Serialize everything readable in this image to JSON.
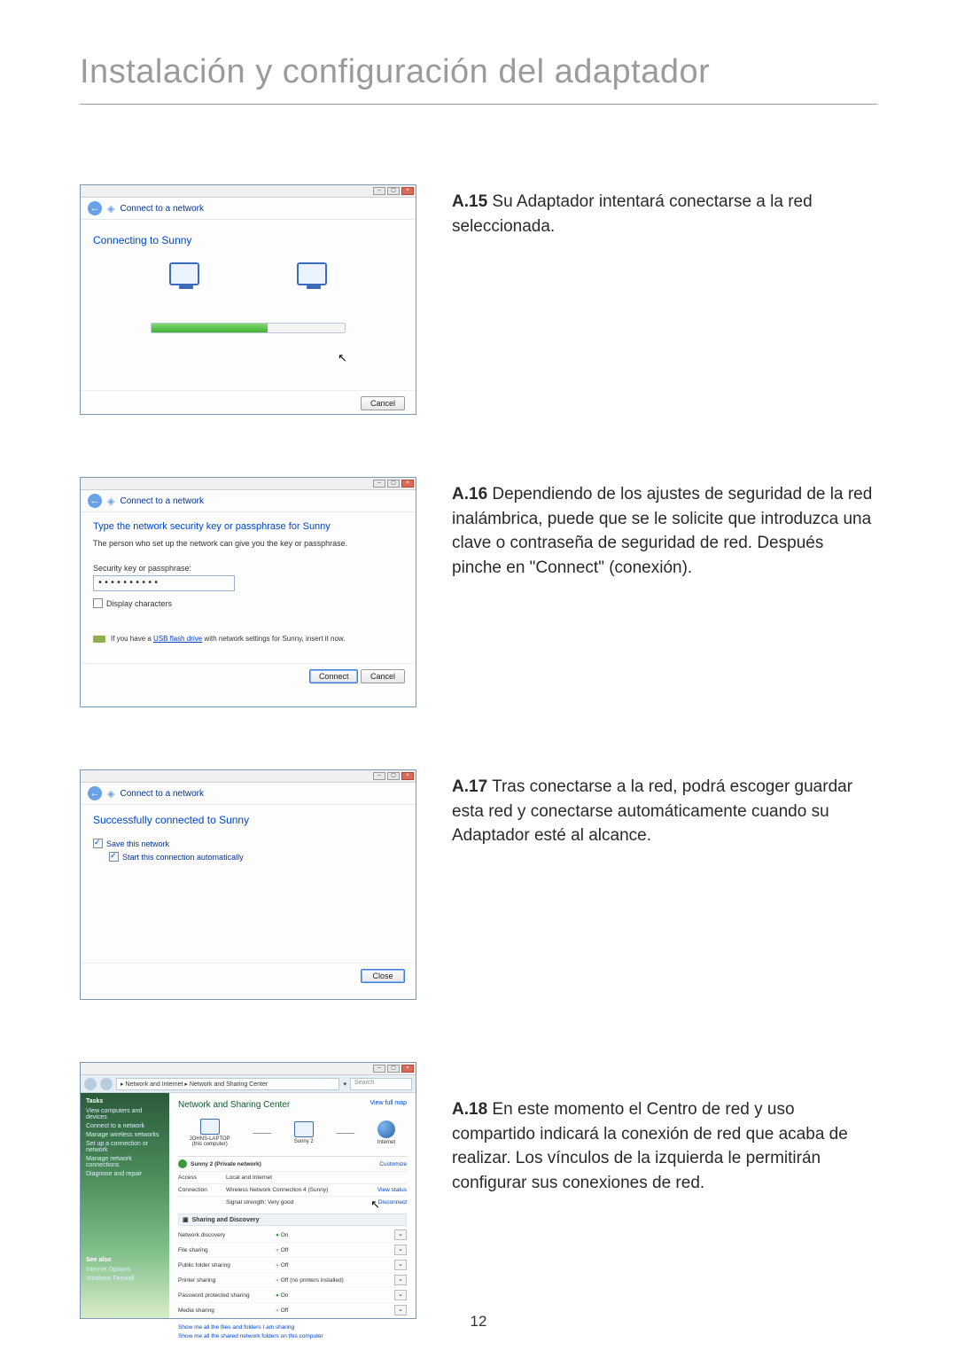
{
  "page_title": "Instalación y configuración del adaptador",
  "page_number": "12",
  "window_common": {
    "header": "Connect to a network",
    "cancel": "Cancel",
    "connect": "Connect",
    "close": "Close"
  },
  "a15": {
    "step": "A.15",
    "text": "Su Adaptador intentará conectarse a la red seleccionada.",
    "connecting": "Connecting to Sunny",
    "progress_pct": 60
  },
  "a16": {
    "step": "A.16",
    "text": "Dependiendo de los ajustes de seguridad de la red inalámbrica, puede que se le solicite que introduzca una clave o contraseña de seguridad de red. Después pinche en \"Connect\" (conexión).",
    "title": "Type the network security key or passphrase for Sunny",
    "sub": "The person who set up the network can give you the key or passphrase.",
    "field_label": "Security key or passphrase:",
    "field_value": "••••••••••",
    "display_chars": "Display characters",
    "usb_pre": "If you have a",
    "usb_link": "USB flash drive",
    "usb_post": " with network settings for Sunny, insert it now."
  },
  "a17": {
    "step": "A.17",
    "text": "Tras conectarse a la red, podrá escoger guardar esta red y conectarse automáticamente cuando su Adaptador esté al alcance.",
    "title": "Successfully connected to Sunny",
    "save": "Save this network",
    "auto": "Start this connection automatically"
  },
  "a18": {
    "step": "A.18",
    "text": "En este momento el Centro de red y uso compartido indicará la conexión de red que acaba de realizar. Los vínculos de la izquierda le permitirán configurar sus conexiones de red.",
    "breadcrumb": "▸ Network and Internet ▸ Network and Sharing Center",
    "search_placeholder": "Search",
    "side_tasks": "Tasks",
    "side_links": [
      "View computers and devices",
      "Connect to a network",
      "Manage wireless networks",
      "Set up a connection or network",
      "Manage network connections",
      "Diagnose and repair"
    ],
    "side_seealso": "See also",
    "side_links2": [
      "Internet Options",
      "Windows Firewall"
    ],
    "heading": "Network and Sharing Center",
    "view_full_map": "View full map",
    "topo": {
      "pc": "JOHNS-LAPTOP",
      "pc_sub": "(this computer)",
      "net": "Sunny 2",
      "internet": "Internet"
    },
    "net_name": "Sunny 2 (Private network)",
    "customize": "Customize",
    "rows": [
      {
        "k": "Access",
        "v": "Local and Internet",
        "a": ""
      },
      {
        "k": "Connection",
        "v": "Wireless Network Connection 4 (Sunny)",
        "a": "View status"
      },
      {
        "k": "",
        "v": "Signal strength: Very good",
        "a": "Disconnect"
      }
    ],
    "sharing_heading": "Sharing and Discovery",
    "sharing": [
      {
        "k": "Network discovery",
        "v": "On",
        "on": true
      },
      {
        "k": "File sharing",
        "v": "Off",
        "on": false
      },
      {
        "k": "Public folder sharing",
        "v": "Off",
        "on": false
      },
      {
        "k": "Printer sharing",
        "v": "Off (no printers installed)",
        "on": false
      },
      {
        "k": "Password protected sharing",
        "v": "On",
        "on": true
      },
      {
        "k": "Media sharing",
        "v": "Off",
        "on": false
      }
    ],
    "bottom_links": [
      "Show me all the files and folders I am sharing",
      "Show me all the shared network folders on this computer"
    ]
  },
  "colors": {
    "title_gray": "#9b9b9b",
    "link_blue": "#0046c7",
    "border_blue": "#7a98b4",
    "green_bar": "#42b233"
  }
}
